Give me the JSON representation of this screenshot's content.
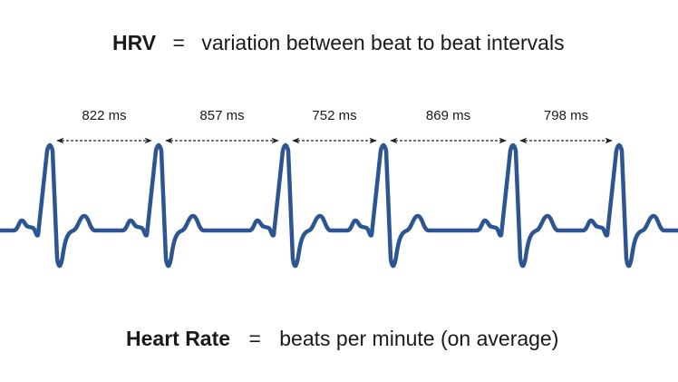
{
  "title": {
    "term": "HRV",
    "eq": "=",
    "definition": "variation between beat to beat intervals"
  },
  "footer": {
    "term": "Heart Rate",
    "eq": "=",
    "definition": "beats per minute (on average)"
  },
  "intervals": [
    "822 ms",
    "857 ms",
    "752 ms",
    "869 ms",
    "798 ms"
  ],
  "colors": {
    "ecg": "#2c5592",
    "arrow": "#222222"
  }
}
